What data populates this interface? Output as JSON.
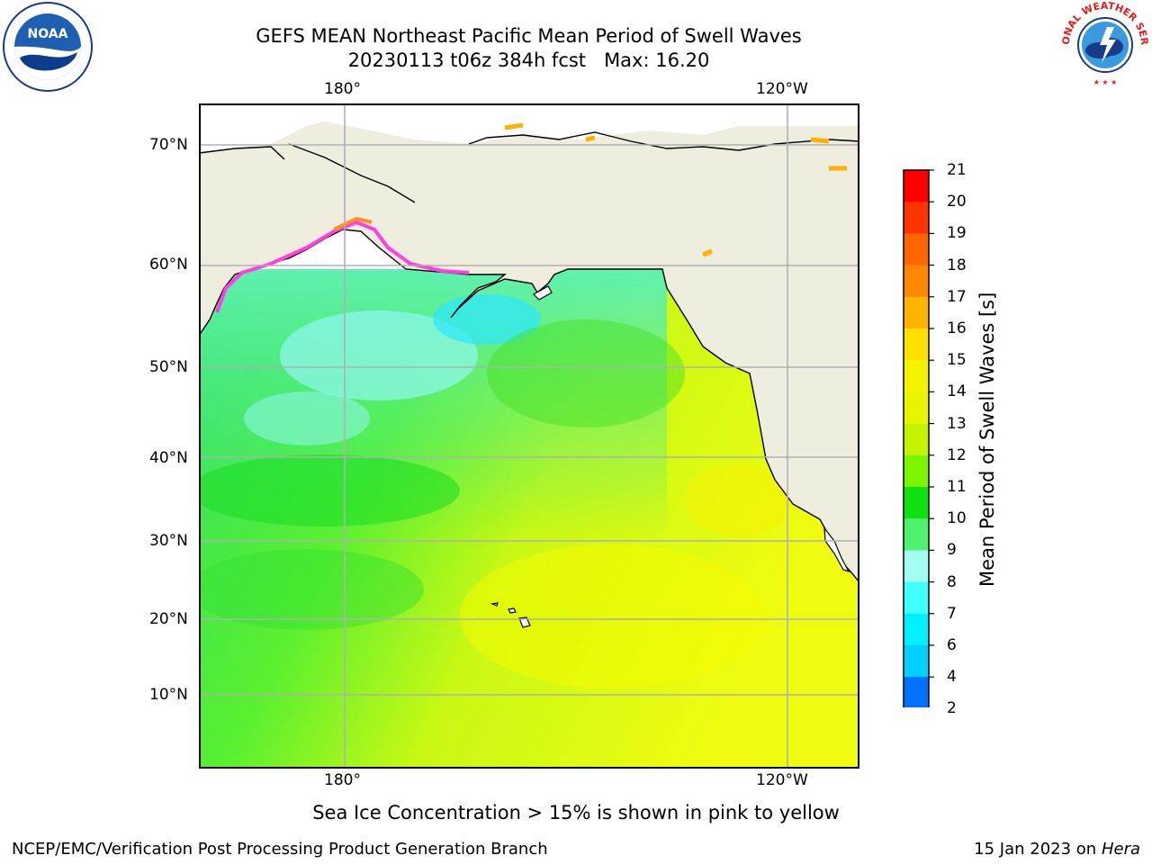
{
  "header": {
    "title_line1": "GEFS MEAN Northeast Pacific Mean Period of Swell Waves",
    "title_line2": "20230113 t06z 384h fcst   Max: 16.20"
  },
  "logos": {
    "noaa_text": "NOAA",
    "nws_text": "NATIONAL WEATHER SERVICE"
  },
  "map": {
    "top_lon_labels": [
      "180°",
      "120°W"
    ],
    "bottom_lon_labels": [
      "180°",
      "120°W"
    ],
    "lat_labels": [
      "70°N",
      "60°N",
      "50°N",
      "40°N",
      "30°N",
      "20°N",
      "10°N"
    ],
    "colors": {
      "land": "#efedde",
      "ocean_warm": "#eafc14",
      "grid": "#b0b0b0"
    }
  },
  "colorbar": {
    "title": "Mean Period of Swell Waves [s]",
    "tick_labels": [
      "21",
      "20",
      "19",
      "18",
      "17",
      "16",
      "15",
      "14",
      "13",
      "12",
      "11",
      "10",
      "9",
      "8",
      "7",
      "6",
      "4",
      "2"
    ],
    "colors": [
      "#ff0000",
      "#ff3300",
      "#ff6600",
      "#ff8800",
      "#ffb400",
      "#ffe000",
      "#f4f400",
      "#e8f400",
      "#c6f400",
      "#7cf400",
      "#10e010",
      "#50f070",
      "#a0fff0",
      "#40ffff",
      "#00f0ff",
      "#00d0ff",
      "#0070ff",
      "#0000ff"
    ]
  },
  "caption": "Sea Ice Concentration > 15% is shown in pink to yellow",
  "footer": {
    "left": "NCEP/EMC/Verification Post Processing Product Generation Branch",
    "right_date": "15 Jan 2023 on ",
    "right_host": "Hera"
  }
}
